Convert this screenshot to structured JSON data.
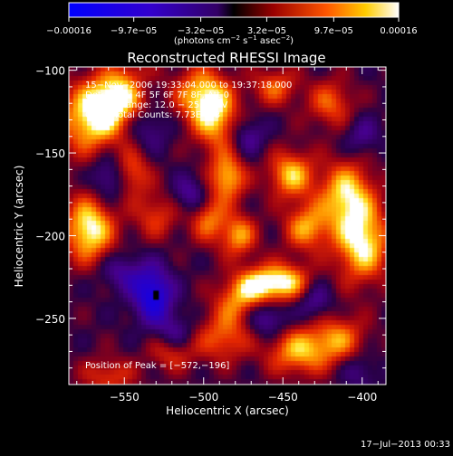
{
  "chart_data": {
    "type": "heatmap",
    "title": "Reconstructed RHESSI Image",
    "xlabel": "Heliocentric X (arcsec)",
    "ylabel": "Heliocentric Y (arcsec)",
    "xlim": [
      -585,
      -385
    ],
    "ylim": [
      -290,
      -98
    ],
    "x_ticks": [
      -550,
      -500,
      -450,
      -400
    ],
    "x_tick_labels": [
      "−550",
      "−500",
      "−450",
      "−400"
    ],
    "y_ticks": [
      -100,
      -150,
      -200,
      -250
    ],
    "y_tick_labels": [
      "−100",
      "−150",
      "−200",
      "−250"
    ],
    "colorbar": {
      "range": [
        -0.00016,
        0.00016
      ],
      "ticks": [
        -0.00016,
        -9.7e-05,
        -3.2e-05,
        3.2e-05,
        9.7e-05,
        0.00016
      ],
      "tick_labels": [
        "−0.00016",
        "−9.7e−05",
        "−3.2e−05",
        "3.2e−05",
        "9.7e−05",
        "0.00016"
      ],
      "unit_parts": [
        "(photons cm",
        "−2",
        " s",
        "−1",
        " asec",
        "−2",
        ")"
      ]
    },
    "annotations": [
      "15−Nov−2006 19:33:04.000 to 19:37:18.000",
      "Detectors: 4F 5F 6F 7F 8F, Att 0",
      "Energy Range: 12.0 − 25.0 keV",
      "Clean     Total Counts: 7.73E+03"
    ],
    "peak_label": "Position of Peak = [−572,−196]",
    "peak": [
      -572,
      -196
    ],
    "blobs": [
      {
        "x": -571,
        "y": -130,
        "v": 0.85,
        "sx": 15,
        "sy": 15
      },
      {
        "x": -558,
        "y": -118,
        "v": 0.65,
        "sx": 12,
        "sy": 12
      },
      {
        "x": -545,
        "y": -110,
        "v": 0.55,
        "sx": 10,
        "sy": 10
      },
      {
        "x": -572,
        "y": -196,
        "v": 1.0,
        "sx": 11,
        "sy": 14
      },
      {
        "x": -545,
        "y": -162,
        "v": 0.55,
        "sx": 8,
        "sy": 10
      },
      {
        "x": -502,
        "y": -115,
        "v": 0.75,
        "sx": 12,
        "sy": 12
      },
      {
        "x": -492,
        "y": -130,
        "v": 0.7,
        "sx": 10,
        "sy": 14
      },
      {
        "x": -485,
        "y": -165,
        "v": 0.8,
        "sx": 8,
        "sy": 10
      },
      {
        "x": -497,
        "y": -190,
        "v": 0.6,
        "sx": 8,
        "sy": 10
      },
      {
        "x": -478,
        "y": -200,
        "v": 0.7,
        "sx": 8,
        "sy": 9
      },
      {
        "x": -465,
        "y": -230,
        "v": 0.85,
        "sx": 10,
        "sy": 8
      },
      {
        "x": -447,
        "y": -228,
        "v": 0.8,
        "sx": 10,
        "sy": 8
      },
      {
        "x": -480,
        "y": -240,
        "v": 0.55,
        "sx": 10,
        "sy": 10
      },
      {
        "x": -445,
        "y": -163,
        "v": 0.8,
        "sx": 10,
        "sy": 10
      },
      {
        "x": -435,
        "y": -195,
        "v": 0.7,
        "sx": 10,
        "sy": 10
      },
      {
        "x": -410,
        "y": -175,
        "v": 0.85,
        "sx": 12,
        "sy": 14
      },
      {
        "x": -400,
        "y": -205,
        "v": 0.95,
        "sx": 12,
        "sy": 16
      },
      {
        "x": -420,
        "y": -120,
        "v": 0.55,
        "sx": 10,
        "sy": 10
      },
      {
        "x": -455,
        "y": -110,
        "v": 0.55,
        "sx": 10,
        "sy": 8
      },
      {
        "x": -440,
        "y": -270,
        "v": 0.75,
        "sx": 14,
        "sy": 10
      },
      {
        "x": -415,
        "y": -262,
        "v": 0.6,
        "sx": 12,
        "sy": 10
      },
      {
        "x": -488,
        "y": -262,
        "v": 0.55,
        "sx": 12,
        "sy": 10
      },
      {
        "x": -520,
        "y": -270,
        "v": 0.5,
        "sx": 10,
        "sy": 8
      },
      {
        "x": -530,
        "y": -188,
        "v": 0.45,
        "sx": 10,
        "sy": 10
      },
      {
        "x": -560,
        "y": -285,
        "v": 0.45,
        "sx": 12,
        "sy": 8
      },
      {
        "x": -532,
        "y": -236,
        "v": -0.85,
        "sx": 9,
        "sy": 12
      },
      {
        "x": -518,
        "y": -260,
        "v": -0.45,
        "sx": 8,
        "sy": 8
      },
      {
        "x": -560,
        "y": -165,
        "v": -0.5,
        "sx": 8,
        "sy": 10
      },
      {
        "x": -508,
        "y": -175,
        "v": -0.45,
        "sx": 8,
        "sy": 8
      },
      {
        "x": -552,
        "y": -222,
        "v": -0.4,
        "sx": 10,
        "sy": 8
      },
      {
        "x": -460,
        "y": -250,
        "v": -0.5,
        "sx": 9,
        "sy": 8
      },
      {
        "x": -430,
        "y": -240,
        "v": -0.4,
        "sx": 8,
        "sy": 8
      },
      {
        "x": -472,
        "y": -140,
        "v": -0.4,
        "sx": 8,
        "sy": 8
      },
      {
        "x": -535,
        "y": -135,
        "v": -0.35,
        "sx": 10,
        "sy": 10
      },
      {
        "x": -400,
        "y": -140,
        "v": -0.35,
        "sx": 8,
        "sy": 8
      },
      {
        "x": -402,
        "y": -282,
        "v": -0.3,
        "sx": 8,
        "sy": 8
      },
      {
        "x": -540,
        "y": -110,
        "v": -0.3,
        "sx": 8,
        "sy": 6
      }
    ],
    "background_level": 0.05
  },
  "footer": {
    "timestamp": "17−Jul−2013 00:33"
  }
}
